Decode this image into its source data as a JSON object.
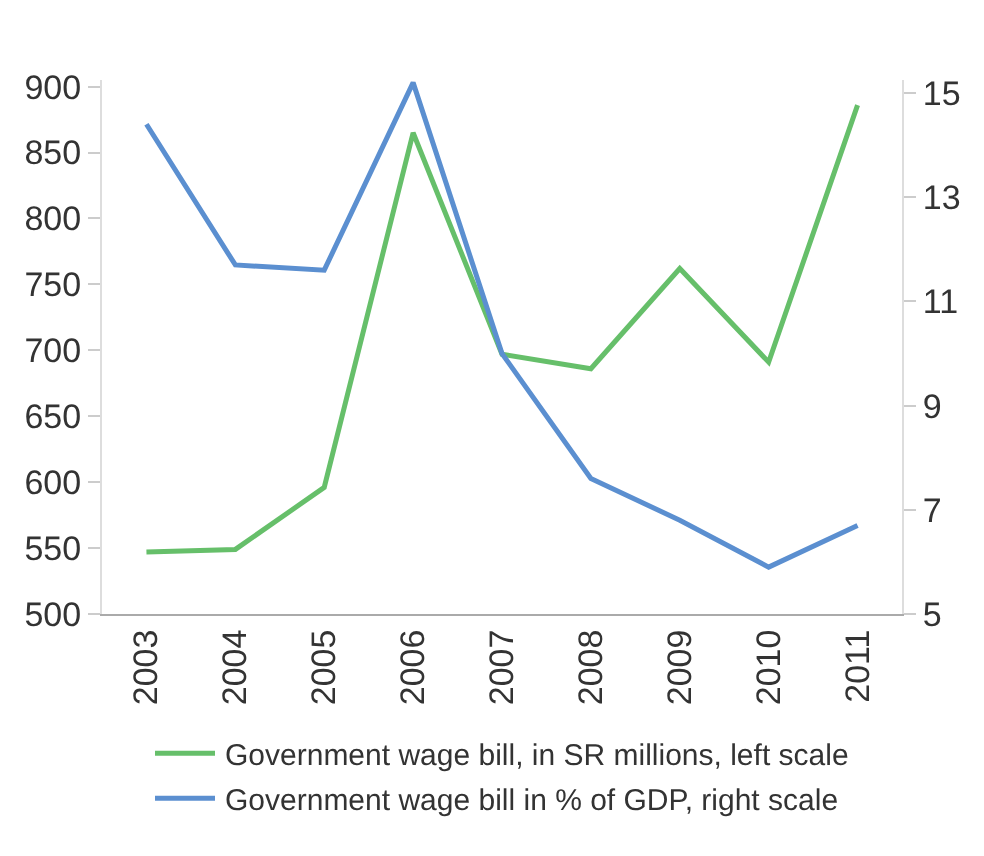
{
  "chart_data": {
    "type": "line",
    "categories": [
      "2003",
      "2004",
      "2005",
      "2006",
      "2007",
      "2008",
      "2009",
      "2010",
      "2011"
    ],
    "series": [
      {
        "name": "Government wage bill, in SR millions, left scale",
        "color": "#66bf6a",
        "values": [
          547,
          549,
          596,
          865,
          697,
          686,
          762,
          691,
          886
        ]
      },
      {
        "name": "Government wage bill in % of GDP, right scale",
        "color": "#5b8fd0",
        "axis": "y2",
        "values": [
          14.4,
          11.7,
          11.6,
          15.2,
          10.0,
          7.6,
          6.8,
          5.9,
          6.7
        ]
      }
    ],
    "ylim": [
      500,
      905
    ],
    "yticks": [
      500,
      550,
      600,
      650,
      700,
      750,
      800,
      850,
      900
    ],
    "y2lim": [
      5,
      15.25
    ],
    "y2ticks": [
      5,
      7,
      9,
      11,
      13,
      15
    ],
    "legend": "bottom",
    "marker": "none",
    "line_style": "solid"
  }
}
